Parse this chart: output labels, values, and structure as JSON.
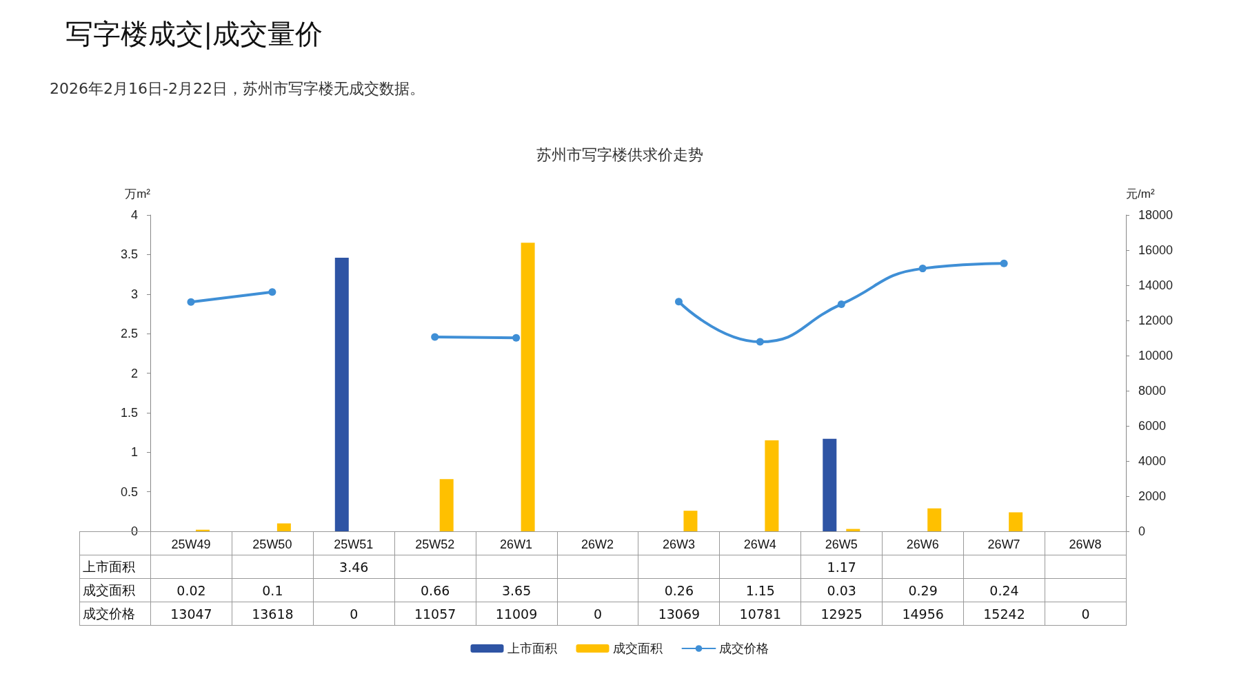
{
  "chart_data": {
    "type": "bar",
    "title": "苏州市写字楼供求价走势",
    "annotations": [
      "写字楼成交|成交量价",
      "2026年2月16日-2月22日，苏州市写字楼无成交数据。"
    ],
    "ylabel": "万m²",
    "y2label": "元/m²",
    "categories": [
      "25W49",
      "25W50",
      "25W51",
      "25W52",
      "26W1",
      "26W2",
      "26W3",
      "26W4",
      "26W5",
      "26W6",
      "26W7",
      "26W8"
    ],
    "series": [
      {
        "name": "上市面积",
        "color": "#2e54a4",
        "values": [
          null,
          null,
          3.46,
          null,
          null,
          null,
          null,
          null,
          1.17,
          null,
          null,
          null
        ],
        "value_labels": [
          null,
          null,
          "3.46",
          null,
          null,
          null,
          null,
          null,
          "1.17",
          null,
          null,
          null
        ]
      },
      {
        "name": "成交面积",
        "color": "#ffc000",
        "values": [
          0.02,
          0.1,
          null,
          0.66,
          3.65,
          null,
          0.26,
          1.15,
          0.03,
          0.29,
          0.24,
          null
        ],
        "value_labels": [
          "0.02",
          "0.1",
          null,
          "0.66",
          "3.65",
          null,
          "0.26",
          "1.15",
          "0.03",
          "0.29",
          "0.24",
          null
        ]
      },
      {
        "name": "成交价格",
        "type": "line",
        "axis": "y2",
        "color": "#3f8fd6",
        "values": [
          13047,
          13618,
          null,
          11057,
          11009,
          null,
          13069,
          10781,
          12925,
          14956,
          15242,
          null
        ],
        "value_labels": [
          "13047",
          "13618",
          "0",
          "11057",
          "11009",
          "0",
          "13069",
          "10781",
          "12925",
          "14956",
          "15242",
          "0"
        ]
      }
    ],
    "ylim": [
      0,
      4
    ],
    "yticks": [
      0,
      0.5,
      1,
      1.5,
      2,
      2.5,
      3,
      3.5,
      4
    ],
    "y2lim": [
      0,
      18000
    ],
    "y2ticks": [
      0,
      2000,
      4000,
      6000,
      8000,
      10000,
      12000,
      14000,
      16000,
      18000
    ],
    "grid": false,
    "legend": "bottom",
    "marker": "circle",
    "line_style": "solid"
  }
}
